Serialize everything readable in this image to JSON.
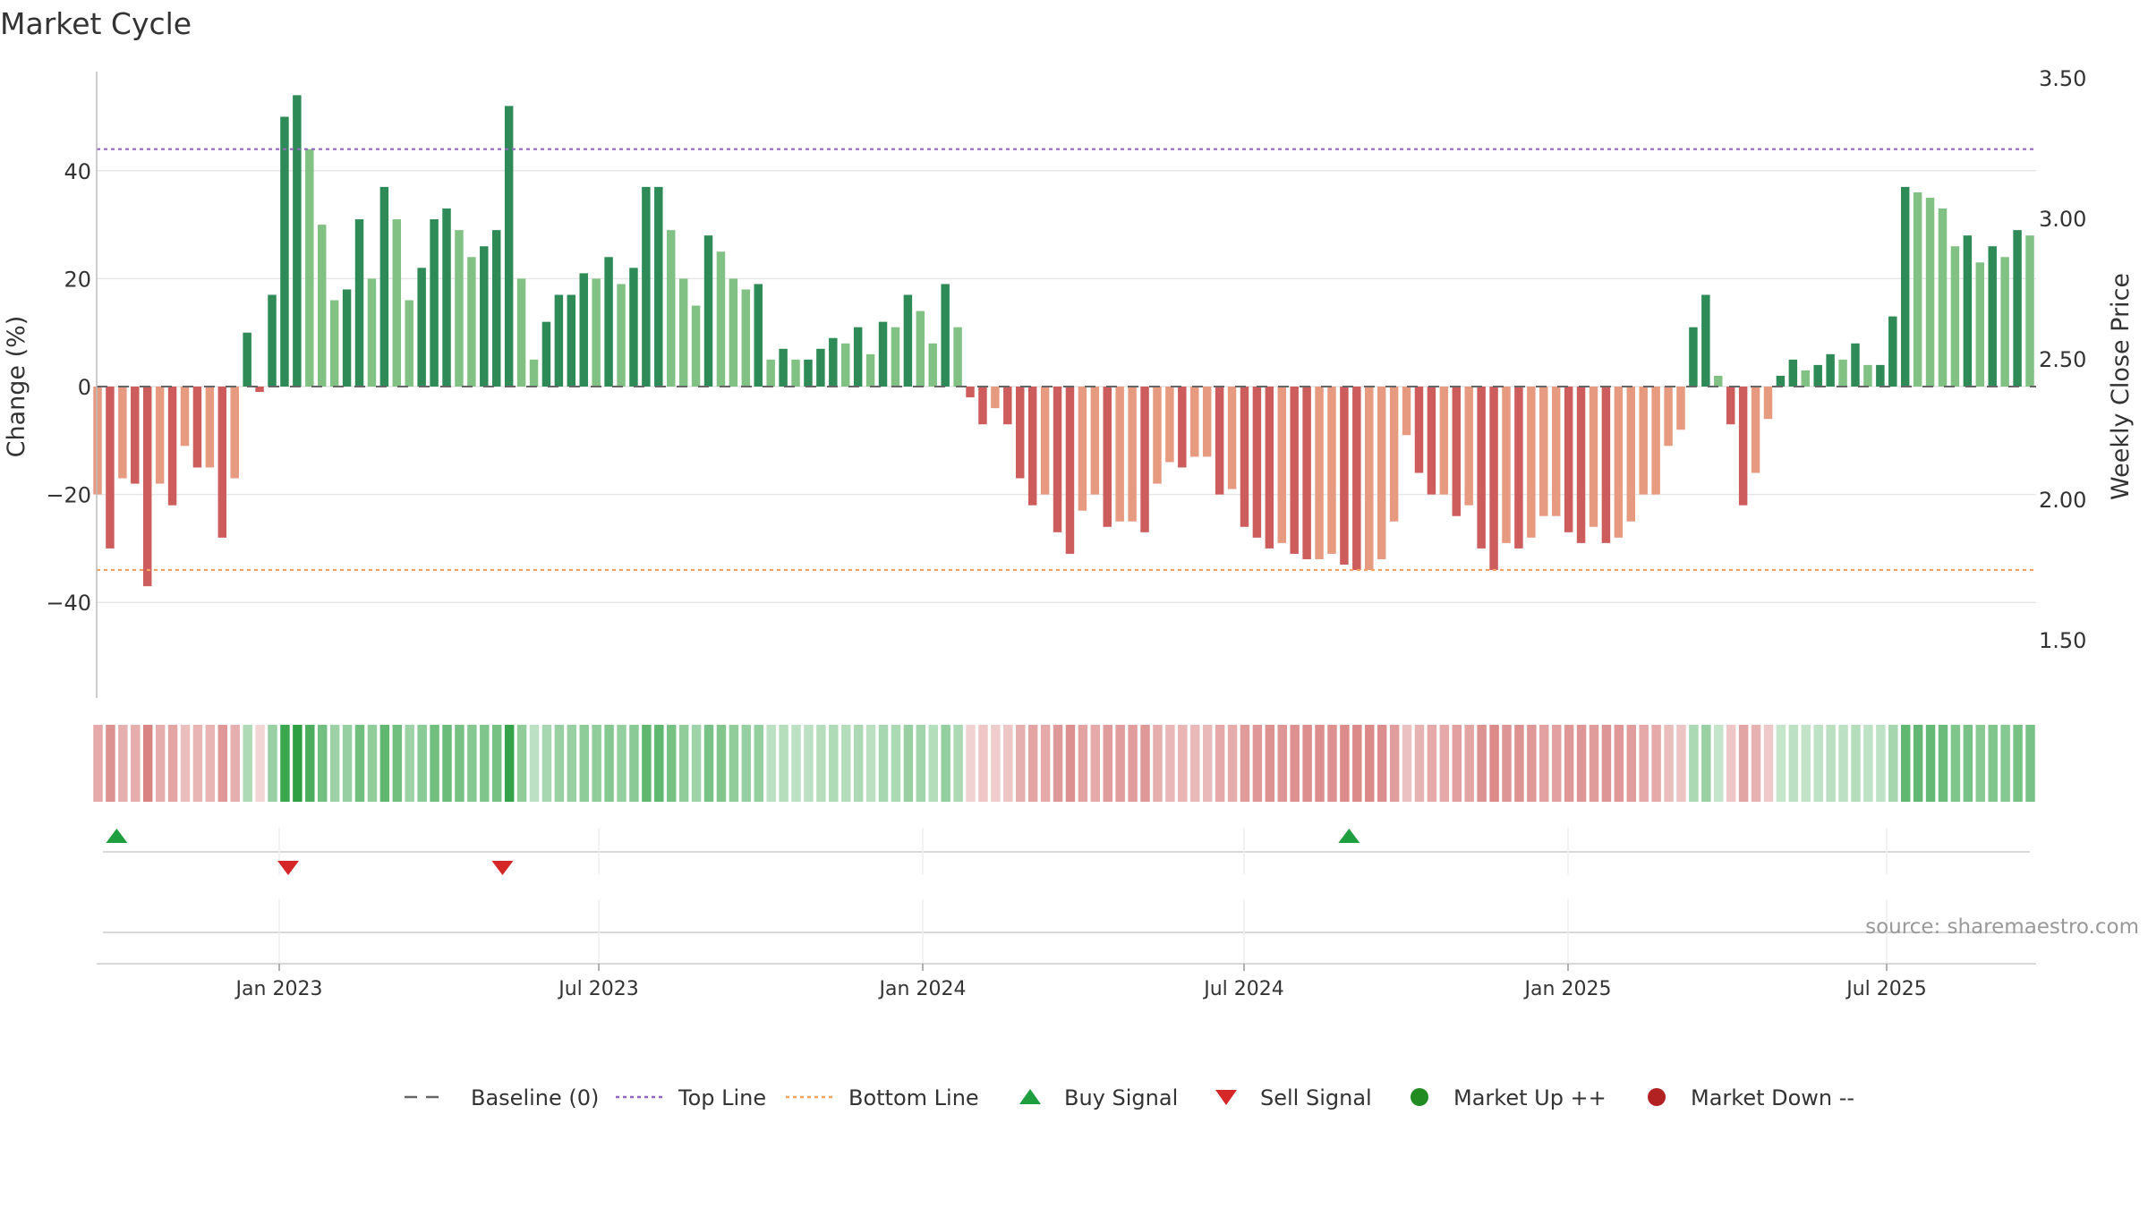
{
  "chart_data": {
    "type": "bar",
    "title": "Market Cycle",
    "ylabel": "Change (%)",
    "y2label": "Weekly Close Price",
    "ylim": [
      -58,
      58
    ],
    "y2lim": [
      1.28,
      3.55
    ],
    "yticks": [
      "40",
      "20",
      "0",
      "−20",
      "−40"
    ],
    "yticks_values": [
      40,
      20,
      0,
      -20,
      -40
    ],
    "y2ticks": [
      "3.50",
      "3.00",
      "2.50",
      "2.00",
      "1.50"
    ],
    "y2ticks_values": [
      3.5,
      3.0,
      2.5,
      2.0,
      1.5
    ],
    "xticks": [
      "Jan 2023",
      "Jul 2023",
      "Jan 2024",
      "Jul 2024",
      "Jan 2025",
      "Jul 2025"
    ],
    "top_line": 44,
    "bottom_line": -34,
    "values": [
      -20,
      -30,
      -17,
      -18,
      -37,
      -18,
      -22,
      -11,
      -15,
      -15,
      -28,
      -17,
      10,
      -1,
      17,
      50,
      54,
      44,
      30,
      16,
      18,
      31,
      20,
      37,
      31,
      16,
      22,
      31,
      33,
      29,
      24,
      26,
      29,
      52,
      20,
      5,
      12,
      17,
      17,
      21,
      20,
      24,
      19,
      22,
      37,
      37,
      29,
      20,
      15,
      28,
      25,
      20,
      18,
      19,
      5,
      7,
      5,
      5,
      7,
      9,
      8,
      11,
      6,
      12,
      11,
      17,
      14,
      8,
      19,
      11,
      -2,
      -7,
      -4,
      -7,
      -17,
      -22,
      -20,
      -27,
      -31,
      -23,
      -20,
      -26,
      -25,
      -25,
      -27,
      -18,
      -14,
      -15,
      -13,
      -13,
      -20,
      -19,
      -26,
      -28,
      -30,
      -29,
      -31,
      -32,
      -32,
      -31,
      -33,
      -34,
      -34,
      -32,
      -25,
      -9,
      -16,
      -20,
      -20,
      -24,
      -22,
      -30,
      -34,
      -29,
      -30,
      -28,
      -24,
      -24,
      -27,
      -29,
      -26,
      -29,
      -28,
      -25,
      -20,
      -20,
      -11,
      -8,
      11,
      17,
      2,
      -7,
      -22,
      -16,
      -6,
      2,
      5,
      3,
      4,
      6,
      5,
      8,
      4,
      4,
      13,
      37,
      36,
      35,
      33,
      26,
      28,
      23,
      26,
      24,
      29,
      28
    ],
    "signals": {
      "buy": [
        "2022-10",
        "2024-09"
      ],
      "sell": [
        "2023-01",
        "2023-05"
      ]
    },
    "legend": [
      {
        "label": "Baseline (0)",
        "symbol": "dash",
        "color": "#666666"
      },
      {
        "label": "Top Line",
        "symbol": "dot",
        "color": "#9467bd"
      },
      {
        "label": "Bottom Line",
        "symbol": "dot",
        "color": "#f4a460"
      },
      {
        "label": "Buy Signal",
        "symbol": "triangle-up",
        "color": "#1e9e3e"
      },
      {
        "label": "Sell Signal",
        "symbol": "triangle-down",
        "color": "#d62728"
      },
      {
        "label": "Market Up ++",
        "symbol": "circle",
        "color": "#228b22"
      },
      {
        "label": "Market Down --",
        "symbol": "circle",
        "color": "#b22222"
      }
    ],
    "source": "source: sharemaestro.com",
    "legend_position": "bottom-center",
    "grid": true
  }
}
